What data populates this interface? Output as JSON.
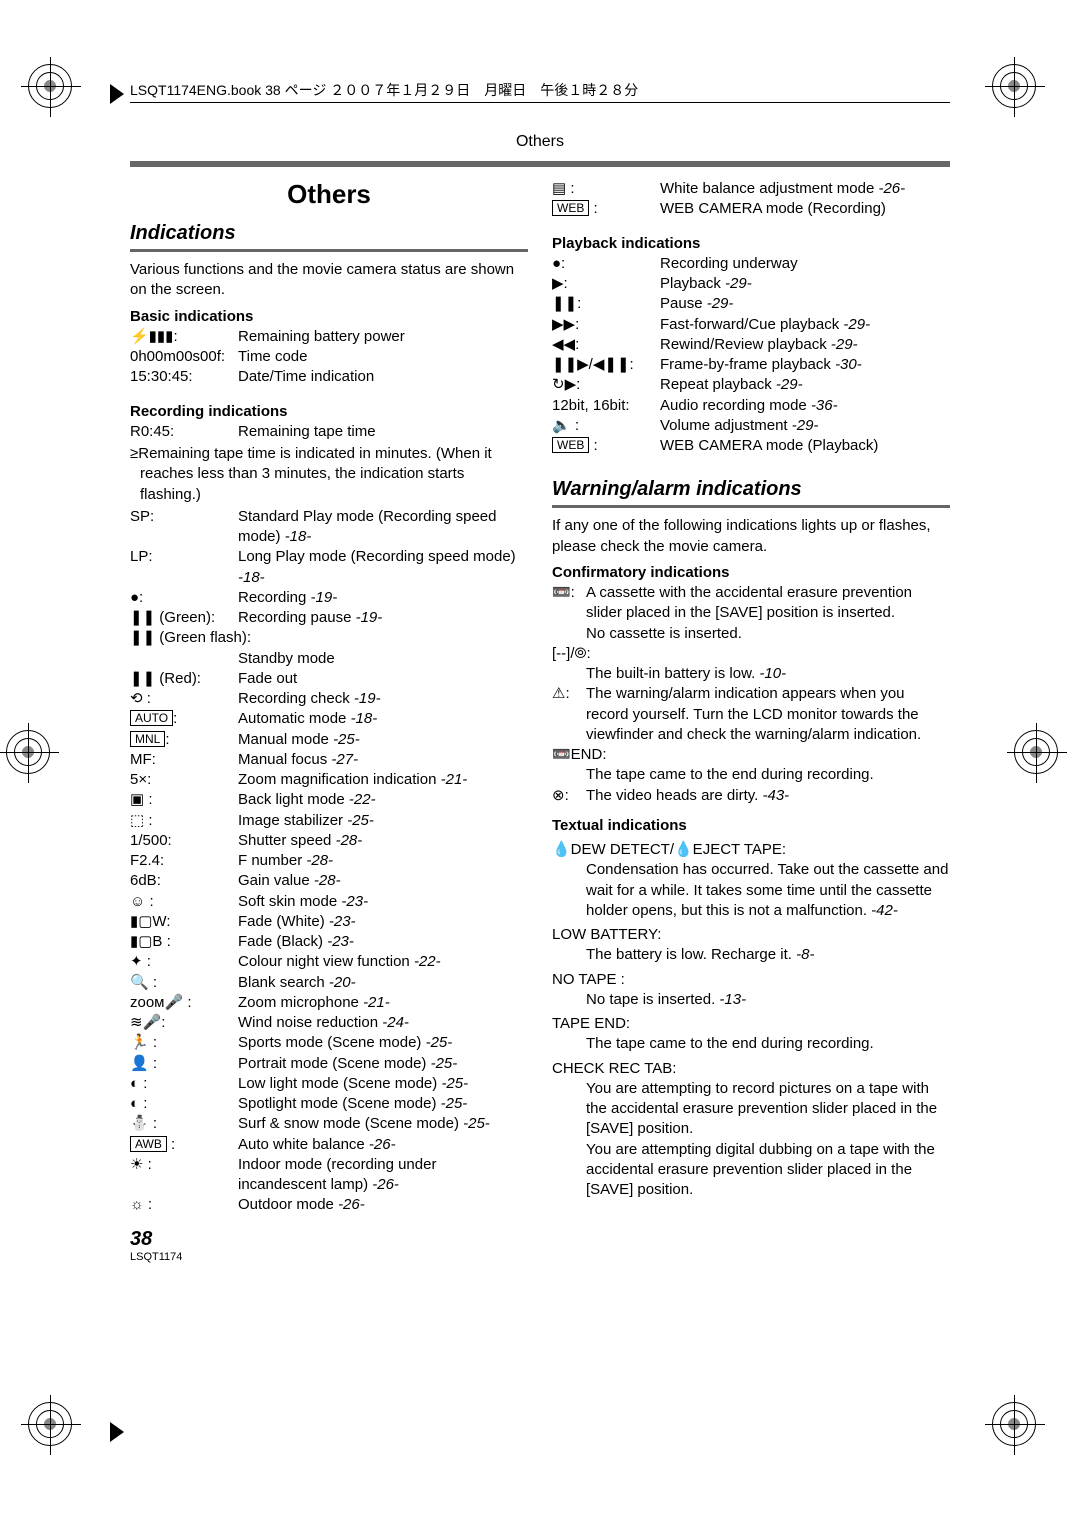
{
  "header": "LSQT1174ENG.book  38 ページ  ２００７年１月２９日　月曜日　午後１時２８分",
  "topLabel": "Others",
  "sectionTitle": "Others",
  "subTitle1": "Indications",
  "intro": "Various functions and the movie camera status are shown on the screen.",
  "basic": {
    "head": "Basic indications",
    "rows": [
      {
        "icon": "⚡▮▮▮",
        "l": ":",
        "r": "Remaining battery power"
      },
      {
        "l": "0h00m00s00f:",
        "r": "Time code"
      },
      {
        "l": "15:30:45:",
        "r": "Date/Time indication"
      }
    ]
  },
  "recording": {
    "head": "Recording indications",
    "r045": {
      "l": "R0:45:",
      "r": "Remaining tape time"
    },
    "note": "≥Remaining tape time is indicated in minutes. (When it reaches less than 3 minutes, the indication starts flashing.)",
    "rows": [
      {
        "l": "SP:",
        "r": "Standard Play mode (Recording speed mode)",
        "ref": "-18-"
      },
      {
        "l": "LP:",
        "r": "Long Play mode (Recording speed mode)",
        "ref": "-18-"
      },
      {
        "l": "●:",
        "r": "Recording",
        "ref": "-19-"
      },
      {
        "l": "❚❚ (Green):",
        "r": "Recording pause",
        "ref": "-19-"
      },
      {
        "l": "❚❚ (Green flash):",
        "r": ""
      },
      {
        "l": "",
        "r": "Standby mode"
      },
      {
        "l": "❚❚ (Red):",
        "r": "Fade out"
      },
      {
        "l": "⟲ :",
        "r": "Recording check",
        "ref": "-19-"
      },
      {
        "box": "AUTO",
        "l": ":",
        "r": "Automatic mode",
        "ref": "-18-"
      },
      {
        "box": "MNL",
        "l": ":",
        "r": "Manual mode",
        "ref": "-25-"
      },
      {
        "l": "MF:",
        "r": "Manual focus",
        "ref": "-27-"
      },
      {
        "l": "5×:",
        "r": "Zoom magnification indication",
        "ref": "-21-"
      },
      {
        "l": "▣ :",
        "r": "Back light mode",
        "ref": "-22-"
      },
      {
        "l": "⬚ :",
        "r": "Image stabilizer",
        "ref": "-25-"
      },
      {
        "l": "1/500:",
        "r": "Shutter speed",
        "ref": "-28-"
      },
      {
        "l": "F2.4:",
        "r": "F number",
        "ref": "-28-"
      },
      {
        "l": "6dB:",
        "r": "Gain value",
        "ref": "-28-"
      },
      {
        "l": "☺ :",
        "r": "Soft skin mode",
        "ref": "-23-"
      },
      {
        "l": "▮▢W:",
        "r": "Fade (White)",
        "ref": "-23-"
      },
      {
        "l": "▮▢B :",
        "r": "Fade (Black)",
        "ref": "-23-"
      },
      {
        "l": "✦ :",
        "r": "Colour night view function",
        "ref": "-22-"
      },
      {
        "l": "🔍 :",
        "r": "Blank search",
        "ref": "-20-"
      },
      {
        "l": "ᴢᴏᴏᴍ🎤 :",
        "r": "Zoom microphone",
        "ref": "-21-"
      },
      {
        "l": "≋🎤:",
        "r": "Wind noise reduction",
        "ref": "-24-"
      },
      {
        "l": "🏃 :",
        "r": "Sports mode (Scene mode)",
        "ref": "-25-"
      },
      {
        "l": "👤 :",
        "r": "Portrait mode (Scene mode)",
        "ref": "-25-"
      },
      {
        "l": "◐ :",
        "r": "Low light mode (Scene mode)",
        "ref": "-25-"
      },
      {
        "l": "◐ :",
        "r": "Spotlight mode (Scene mode)",
        "ref": "-25-"
      },
      {
        "l": "⛄ :",
        "r": "Surf & snow mode (Scene mode)",
        "ref": "-25-"
      },
      {
        "box": "AWB",
        "l": " :",
        "r": "Auto white balance",
        "ref": "-26-"
      },
      {
        "l": "☀ :",
        "r": "Indoor mode (recording under incandescent lamp)",
        "ref": "-26-"
      },
      {
        "l": "☼ :",
        "r": "Outdoor mode",
        "ref": "-26-"
      }
    ]
  },
  "rightTop": [
    {
      "l": "▤ :",
      "r": "White balance adjustment mode",
      "ref": "-26-"
    },
    {
      "box": "WEB",
      "l": " :",
      "r": "WEB CAMERA mode (Recording)"
    }
  ],
  "playback": {
    "head": "Playback indications",
    "rows": [
      {
        "l": "●:",
        "r": "Recording underway"
      },
      {
        "l": "▶:",
        "r": "Playback",
        "ref": "-29-"
      },
      {
        "l": "❚❚:",
        "r": "Pause",
        "ref": "-29-"
      },
      {
        "l": "▶▶:",
        "r": "Fast-forward/Cue playback",
        "ref": "-29-"
      },
      {
        "l": "◀◀:",
        "r": "Rewind/Review playback",
        "ref": "-29-"
      },
      {
        "l": "❚❚▶/◀❚❚:",
        "r": "Frame-by-frame playback",
        "ref": "-30-"
      },
      {
        "l": "↻▶:",
        "r": "Repeat playback",
        "ref": "-29-"
      },
      {
        "l": "12bit, 16bit:",
        "r": "Audio recording mode",
        "ref": "-36-"
      },
      {
        "l": "🔈 :",
        "r": "Volume adjustment",
        "ref": "-29-"
      },
      {
        "box": "WEB",
        "l": " :",
        "r": "WEB CAMERA mode (Playback)"
      }
    ]
  },
  "subTitle2": "Warning/alarm indications",
  "warningIntro": "If any one of the following indications lights up or flashes, please check the movie camera.",
  "confirm": {
    "head": "Confirmatory indications",
    "items": [
      {
        "icon": "📼:",
        "text": "A cassette with the accidental erasure prevention slider placed in the [SAVE] position is inserted.\nNo cassette is inserted."
      },
      {
        "iconPlain": "[--]/⦾:",
        "text": "The built-in battery is low.",
        "ref": "-10-"
      },
      {
        "icon": "⚠:",
        "text": "The warning/alarm indication appears when you record yourself. Turn the LCD monitor towards the viewfinder and check the warning/alarm indication."
      },
      {
        "iconPlain": "📼END:",
        "text": "The tape came to the end during recording."
      },
      {
        "icon": "⊗:",
        "text": "The video heads are dirty.",
        "ref": "-43-"
      }
    ]
  },
  "textual": {
    "head": "Textual indications",
    "items": [
      {
        "title": "💧DEW DETECT/💧EJECT TAPE:",
        "text": "Condensation has occurred. Take out the cassette and wait for a while. It takes some time until the cassette holder opens, but this is not a malfunction.",
        "ref": "-42-"
      },
      {
        "title": "LOW BATTERY:",
        "text": "The battery is low. Recharge it.",
        "ref": "-8-"
      },
      {
        "title": "NO TAPE :",
        "text": "No tape is inserted.",
        "ref": "-13-"
      },
      {
        "title": "TAPE END:",
        "text": "The tape came to the end during recording."
      },
      {
        "title": "CHECK REC TAB:",
        "text": "You are attempting to record pictures on a tape with the accidental erasure prevention slider placed in the [SAVE] position.\nYou are attempting digital dubbing on a tape with the accidental erasure prevention slider placed in the [SAVE] position."
      }
    ]
  },
  "pageNum": "38",
  "docCode": "LSQT1174"
}
